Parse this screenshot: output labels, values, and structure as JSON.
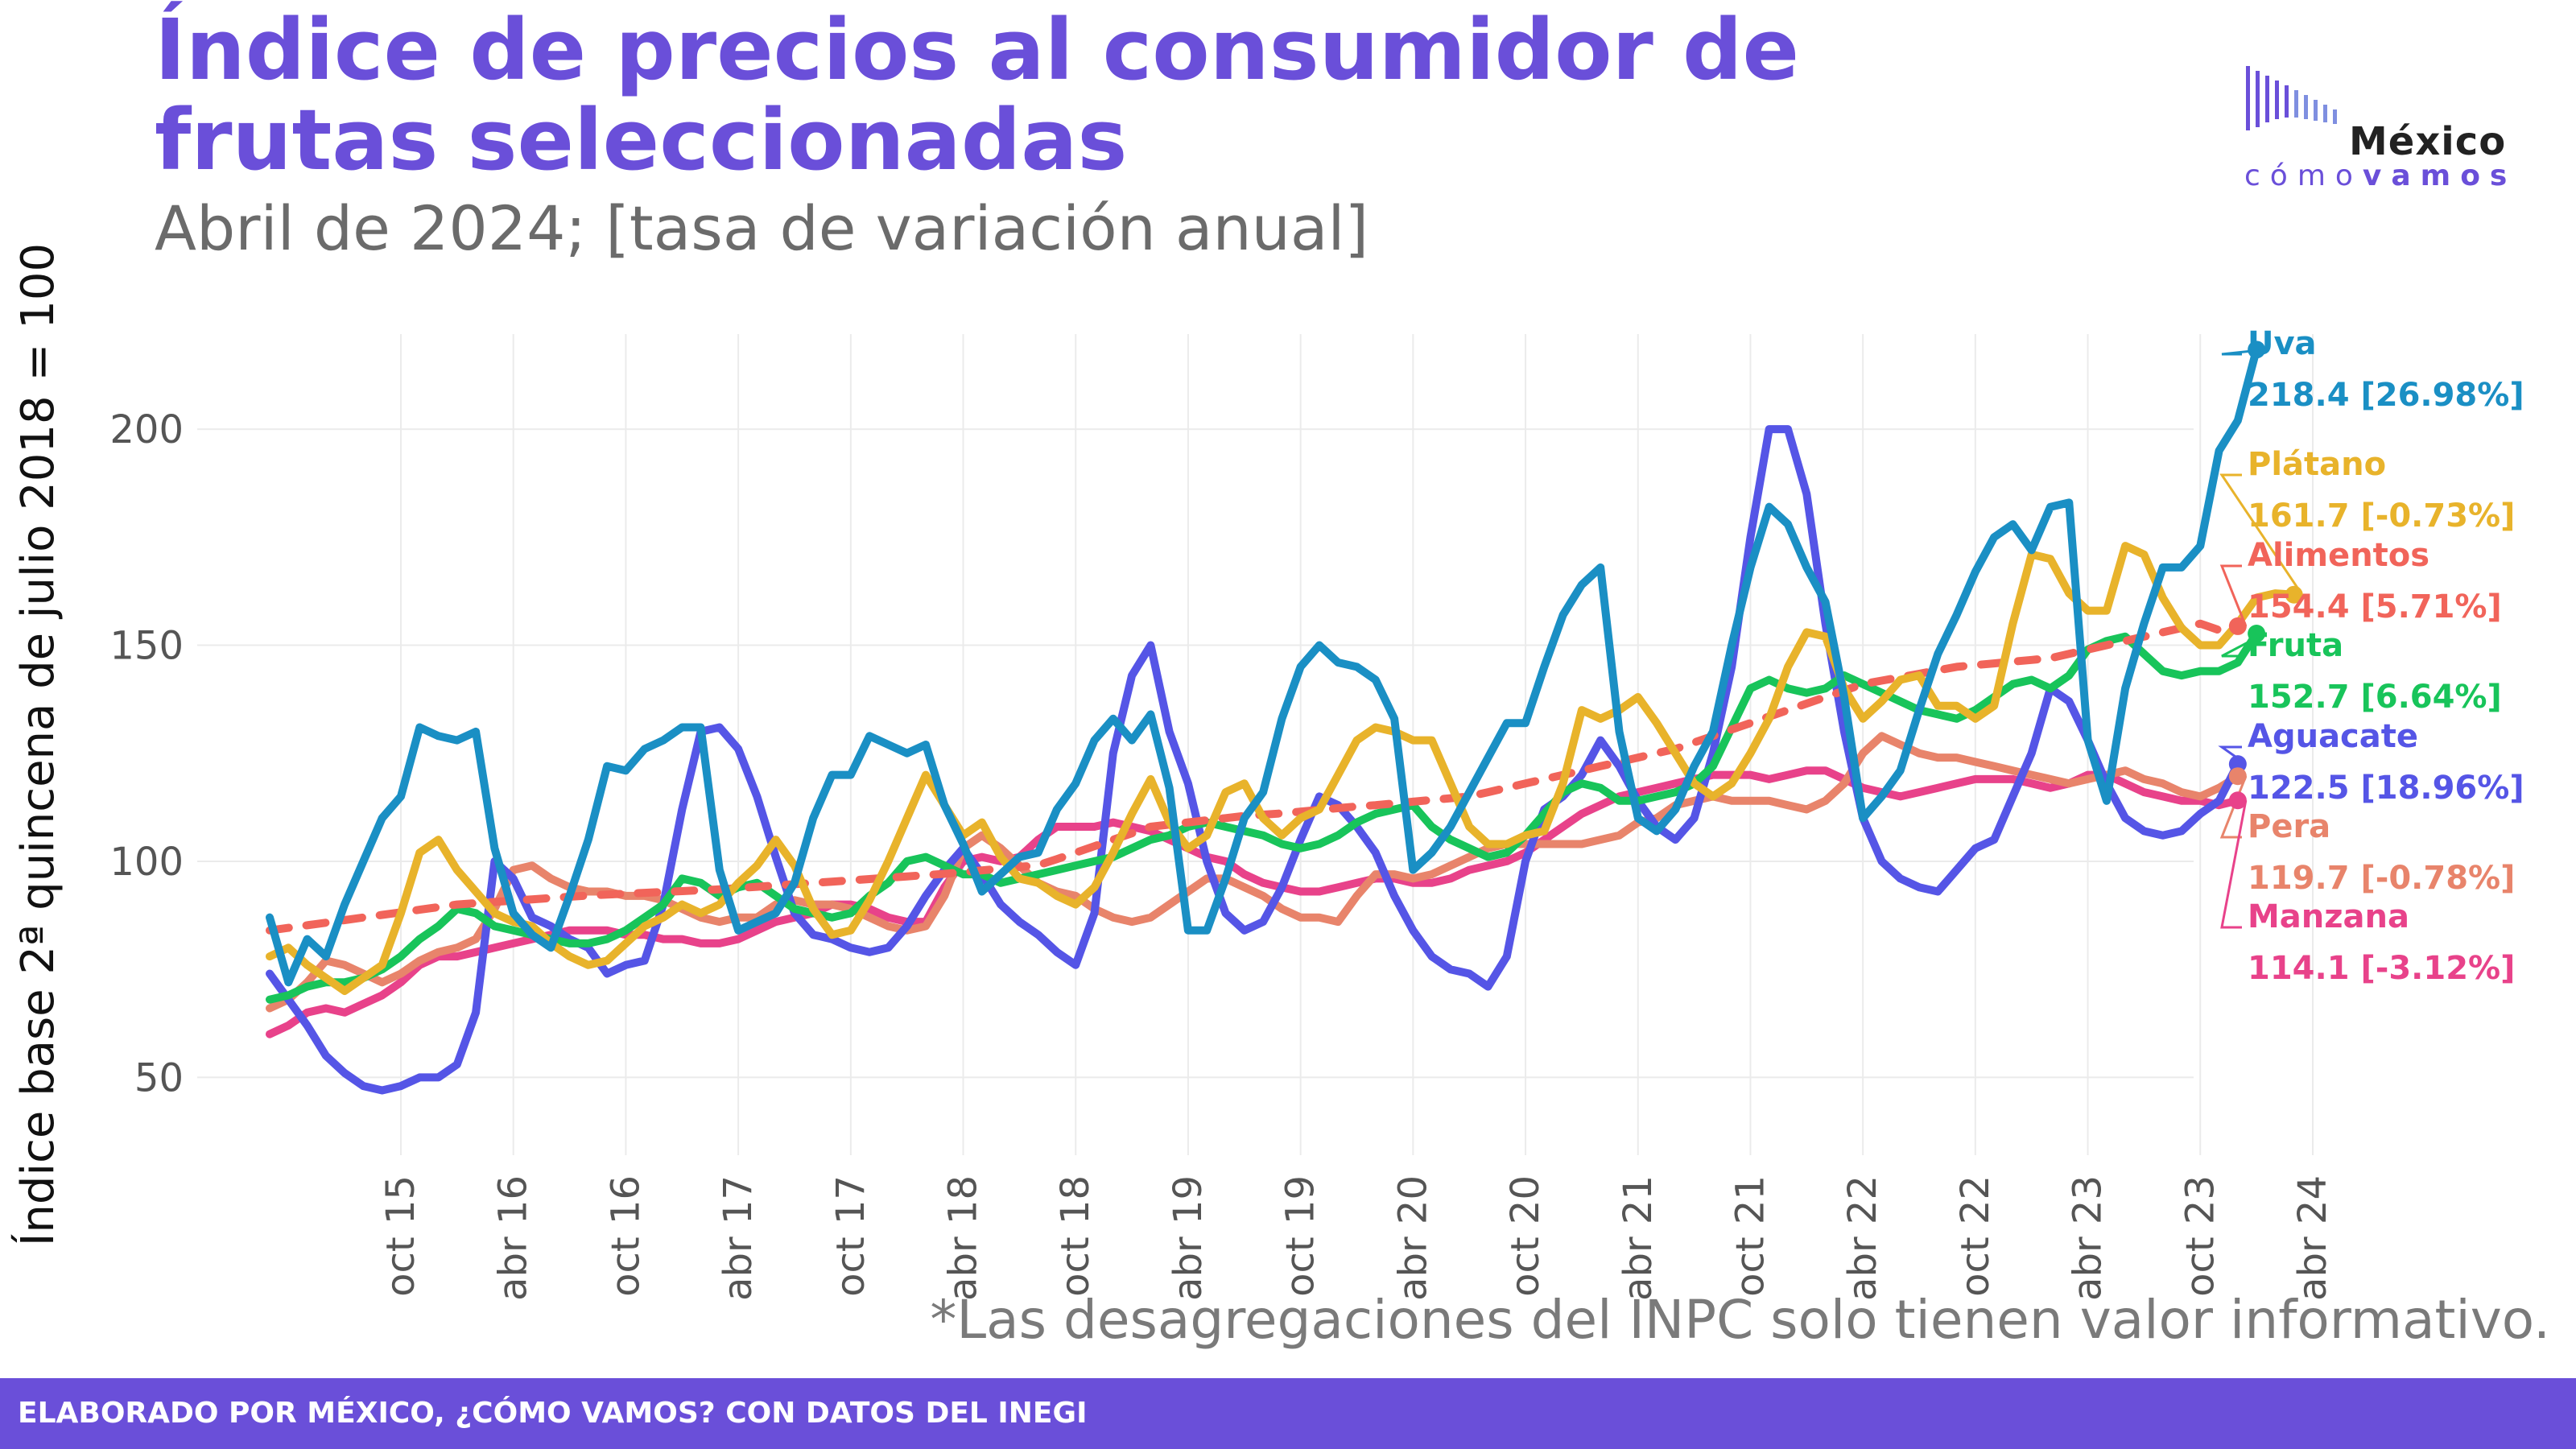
{
  "header": {
    "title": "Índice de precios al consumidor de frutas seleccionadas",
    "subtitle": "Abril de 2024; [tasa de variación anual]"
  },
  "logo": {
    "mexico": "México",
    "como": "cómo",
    "vamos": "vamos"
  },
  "footnote": "*Las desagregaciones del INPC solo tienen valor informativo.",
  "footer": "ELABORADO POR MÉXICO, ¿CÓMO VAMOS? CON DATOS DEL INEGI",
  "chart_data": {
    "type": "line",
    "ylabel": "Índice base 2ª quincena de julio 2018 = 100",
    "ylim": [
      32,
      222
    ],
    "y_ticks": [
      50,
      100,
      150,
      200
    ],
    "x_ticks": [
      "oct 15",
      "abr 16",
      "oct 16",
      "abr 17",
      "oct 17",
      "abr 18",
      "oct 18",
      "abr 19",
      "oct 19",
      "abr 20",
      "oct 20",
      "abr 21",
      "oct 21",
      "abr 22",
      "oct 22",
      "abr 23",
      "oct 23",
      "abr 24"
    ],
    "grid": true,
    "start": "2015-03",
    "series": [
      {
        "name": "Uva",
        "label": "218.4 [26.98%]",
        "color": "#1a8fc4",
        "width": 10,
        "dash": false,
        "values": [
          87,
          72,
          82,
          78,
          90,
          100,
          110,
          115,
          131,
          129,
          128,
          130,
          103,
          88,
          83,
          80,
          92,
          105,
          122,
          121,
          126,
          128,
          131,
          131,
          98,
          84,
          86,
          88,
          95,
          110,
          120,
          120,
          129,
          127,
          125,
          127,
          113,
          104,
          93,
          97,
          101,
          102,
          112,
          118,
          128,
          133,
          128,
          134,
          117,
          84,
          84,
          96,
          110,
          116,
          133,
          145,
          150,
          146,
          145,
          142,
          133,
          98,
          102,
          108,
          116,
          124,
          132,
          132,
          145,
          157,
          164,
          168,
          130,
          110,
          107,
          112,
          122,
          130,
          150,
          168,
          182,
          178,
          168,
          160,
          138,
          110,
          115,
          121,
          135,
          148,
          157,
          167,
          175,
          178,
          172,
          182,
          183,
          128,
          114,
          140,
          155,
          168,
          168,
          173,
          195,
          202,
          218.4
        ]
      },
      {
        "name": "Plátano",
        "label": "161.7 [-0.73%]",
        "color": "#e8b32b",
        "width": 10,
        "dash": false,
        "values": [
          78,
          80,
          76,
          73,
          70,
          73,
          76,
          88,
          102,
          105,
          98,
          93,
          88,
          86,
          85,
          81,
          78,
          76,
          77,
          81,
          85,
          87,
          90,
          88,
          90,
          95,
          99,
          105,
          99,
          89,
          83,
          84,
          91,
          100,
          110,
          120,
          113,
          106,
          109,
          101,
          96,
          95,
          92,
          90,
          94,
          102,
          111,
          119,
          109,
          103,
          106,
          116,
          118,
          110,
          106,
          110,
          112,
          120,
          128,
          131,
          130,
          128,
          128,
          118,
          108,
          104,
          104,
          106,
          107,
          118,
          135,
          133,
          135,
          138,
          132,
          125,
          118,
          115,
          118,
          125,
          133,
          145,
          153,
          152,
          140,
          133,
          137,
          142,
          143,
          136,
          136,
          133,
          136,
          155,
          171,
          170,
          162,
          158,
          158,
          173,
          171,
          161,
          154,
          150,
          150,
          155,
          161,
          162,
          161.7
        ]
      },
      {
        "name": "Alimentos",
        "label": "154.4 [5.71%]",
        "color": "#f1645a",
        "width": 10,
        "dash": true,
        "values": [
          84,
          84.6,
          85.2,
          85.8,
          86.4,
          87,
          87.6,
          88.2,
          88.8,
          89.4,
          90,
          90.3,
          90.6,
          90.9,
          91.2,
          91.5,
          91.8,
          92.1,
          92.3,
          92.5,
          92.7,
          92.9,
          93.1,
          93.3,
          93.5,
          93.8,
          94.1,
          94.4,
          94.7,
          95,
          95.3,
          95.6,
          95.9,
          96.2,
          96.5,
          96.8,
          97.1,
          97.5,
          97.9,
          98.3,
          98.7,
          99.1,
          100.5,
          102,
          103.5,
          105,
          106.5,
          108,
          108.5,
          109,
          109.5,
          110,
          110.5,
          110.8,
          111.1,
          111.5,
          111.9,
          112.3,
          112.7,
          113,
          113.4,
          113.8,
          114.2,
          114.6,
          115,
          116,
          117,
          118,
          119,
          120,
          121,
          122,
          123,
          124,
          125,
          126,
          127.5,
          129,
          130.5,
          132,
          133.5,
          135,
          136.5,
          138,
          139.5,
          141,
          141.8,
          142.6,
          143.4,
          144.2,
          145,
          145.4,
          145.8,
          146.2,
          146.6,
          147,
          148,
          149,
          150,
          151,
          152,
          153,
          154,
          155,
          153.5,
          154.4
        ]
      },
      {
        "name": "Fruta",
        "label": "152.7 [6.64%]",
        "color": "#18c45a",
        "width": 10,
        "dash": false,
        "values": [
          68,
          69,
          71,
          72,
          72,
          73,
          75,
          78,
          82,
          85,
          89,
          88,
          85,
          84,
          83,
          82,
          81,
          81,
          82,
          84,
          87,
          90,
          96,
          95,
          92,
          94,
          95,
          92,
          89,
          88,
          87,
          88,
          92,
          95,
          100,
          101,
          99,
          97,
          97,
          95,
          96,
          97,
          98,
          99,
          100,
          101,
          103,
          105,
          106,
          108,
          109,
          108,
          107,
          106,
          104,
          103,
          104,
          106,
          109,
          111,
          112,
          113,
          108,
          105,
          103,
          101,
          102,
          106,
          111,
          116,
          118,
          117,
          114,
          114,
          115,
          116,
          118,
          122,
          131,
          140,
          142,
          140,
          139,
          140,
          143,
          141,
          139,
          137,
          135,
          134,
          133,
          135,
          138,
          141,
          142,
          140,
          143,
          149,
          151,
          152,
          148,
          144,
          143,
          144,
          144,
          146,
          152.7
        ]
      },
      {
        "name": "Aguacate",
        "label": "122.5 [18.96%]",
        "color": "#5555e6",
        "width": 10,
        "dash": false,
        "values": [
          74,
          68,
          62,
          55,
          51,
          48,
          47,
          48,
          50,
          50,
          53,
          65,
          100,
          96,
          87,
          85,
          82,
          80,
          74,
          76,
          77,
          90,
          112,
          130,
          131,
          126,
          115,
          101,
          88,
          83,
          82,
          80,
          79,
          80,
          85,
          92,
          98,
          103,
          97,
          90,
          86,
          83,
          79,
          76,
          88,
          125,
          143,
          150,
          130,
          118,
          100,
          88,
          84,
          86,
          94,
          105,
          115,
          113,
          108,
          102,
          92,
          84,
          78,
          75,
          74,
          71,
          78,
          100,
          112,
          115,
          120,
          128,
          122,
          114,
          108,
          105,
          110,
          125,
          145,
          175,
          200,
          200,
          185,
          155,
          130,
          110,
          100,
          96,
          94,
          93,
          98,
          103,
          105,
          115,
          125,
          140,
          137,
          128,
          118,
          110,
          107,
          106,
          107,
          111,
          114,
          122.5
        ]
      },
      {
        "name": "Pera",
        "label": "119.7 [-0.78%]",
        "color": "#e8846b",
        "width": 10,
        "dash": false,
        "values": [
          66,
          68,
          72,
          77,
          76,
          74,
          72,
          74,
          77,
          79,
          80,
          82,
          89,
          98,
          99,
          96,
          94,
          93,
          93,
          92,
          92,
          91,
          89,
          87,
          86,
          87,
          87,
          90,
          91,
          90,
          90,
          89,
          87,
          85,
          84,
          85,
          92,
          103,
          106,
          103,
          99,
          95,
          93,
          92,
          89,
          87,
          86,
          87,
          90,
          93,
          96,
          96,
          94,
          92,
          89,
          87,
          87,
          86,
          92,
          97,
          97,
          96,
          97,
          99,
          101,
          103,
          104,
          104,
          104,
          104,
          104,
          105,
          106,
          109,
          110,
          113,
          114,
          115,
          114,
          114,
          114,
          113,
          112,
          114,
          118,
          125,
          129,
          127,
          125,
          124,
          124,
          123,
          122,
          121,
          120,
          119,
          118,
          119,
          120,
          121,
          119,
          118,
          116,
          115,
          117,
          119.7
        ]
      },
      {
        "name": "Manzana",
        "label": "114.1 [-3.12%]",
        "color": "#e8428a",
        "width": 10,
        "dash": false,
        "values": [
          60,
          62,
          65,
          66,
          65,
          67,
          69,
          72,
          76,
          78,
          78,
          79,
          80,
          81,
          82,
          83,
          84,
          84,
          84,
          83,
          83,
          82,
          82,
          81,
          81,
          82,
          84,
          86,
          87,
          88,
          90,
          90,
          89,
          87,
          86,
          86,
          94,
          100,
          101,
          100,
          101,
          105,
          108,
          108,
          108,
          109,
          108,
          107,
          105,
          103,
          101,
          100,
          97,
          95,
          94,
          93,
          93,
          94,
          95,
          96,
          96,
          95,
          95,
          96,
          98,
          99,
          100,
          102,
          105,
          108,
          111,
          113,
          115,
          116,
          117,
          118,
          119,
          120,
          120,
          120,
          119,
          120,
          121,
          121,
          119,
          117,
          116,
          115,
          116,
          117,
          118,
          119,
          119,
          119,
          118,
          117,
          118,
          120,
          120,
          118,
          116,
          115,
          114,
          114,
          113,
          114.1
        ]
      }
    ]
  }
}
